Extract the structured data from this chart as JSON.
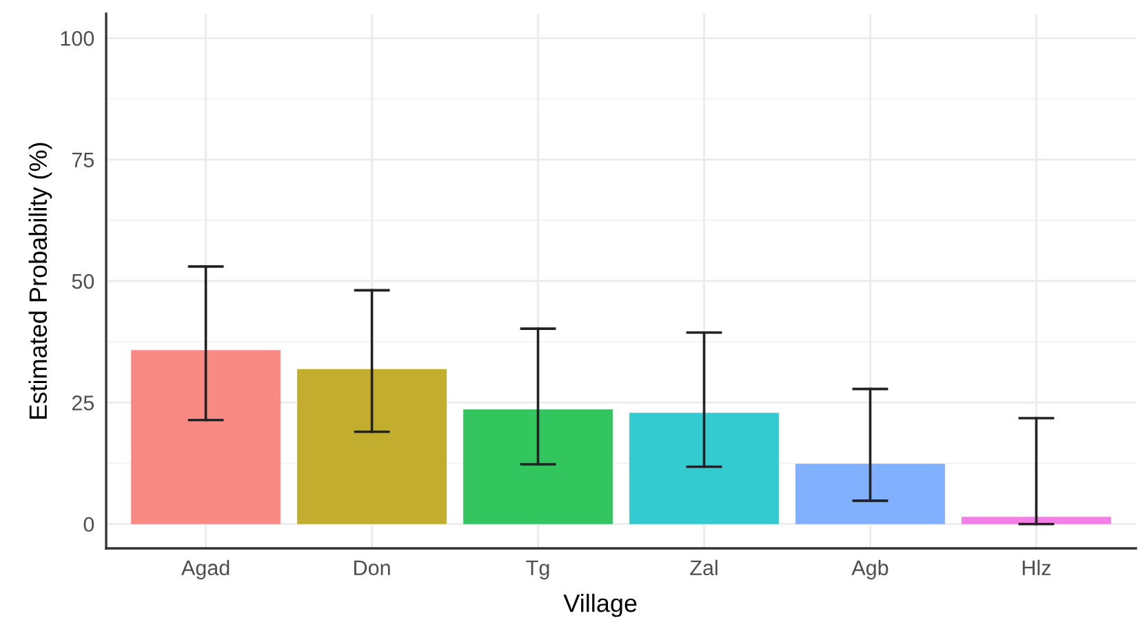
{
  "chart_data": {
    "type": "bar",
    "xlabel": "Village",
    "ylabel": "Estimated Probability (%)",
    "categories": [
      "Agad",
      "Don",
      "Tg",
      "Zal",
      "Agb",
      "Hlz"
    ],
    "values": [
      35.8,
      31.9,
      23.6,
      22.9,
      12.4,
      1.5
    ],
    "errors": [
      [
        21.4,
        53.0
      ],
      [
        19.0,
        48.1
      ],
      [
        12.3,
        40.2
      ],
      [
        11.8,
        39.4
      ],
      [
        4.8,
        27.8
      ],
      [
        0,
        21.8
      ]
    ],
    "colors": [
      "#f98a83",
      "#c3ad2e",
      "#33c65f",
      "#33cbcf",
      "#80b0ff",
      "#f37fe6"
    ],
    "ylim": [
      -5,
      105
    ],
    "yticks": [
      0,
      25,
      50,
      75,
      100
    ],
    "grid": true
  }
}
